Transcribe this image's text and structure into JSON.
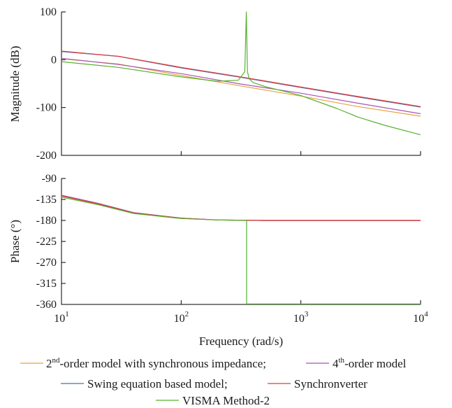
{
  "chart_data": [
    {
      "type": "line",
      "panel": "magnitude",
      "x_scale": "log",
      "xlim": [
        10,
        10000
      ],
      "ylim": [
        -200,
        100
      ],
      "yticks": [
        "100",
        "0",
        "-100",
        "-200"
      ],
      "ylabel": "Magnitude (dB)",
      "series": [
        {
          "name_key": "orange",
          "color": "#e8a33d",
          "x": [
            10,
            30,
            100,
            300,
            1000,
            3000,
            10000
          ],
          "y": [
            2,
            -9,
            -33,
            -54,
            -76,
            -98,
            -118
          ]
        },
        {
          "name_key": "purple",
          "color": "#a855b5",
          "x": [
            10,
            30,
            100,
            300,
            1000,
            3000,
            10000
          ],
          "y": [
            3,
            -10,
            -29,
            -50,
            -70,
            -91,
            -113
          ]
        },
        {
          "name_key": "blue",
          "color": "#4a6fb5",
          "x": [
            10,
            30,
            100,
            300,
            1000,
            3000,
            10000
          ],
          "y": [
            17,
            7,
            -17,
            -36,
            -58,
            -78,
            -99
          ]
        },
        {
          "name_key": "red",
          "color": "#e03c3c",
          "x": [
            10,
            30,
            100,
            300,
            1000,
            3000,
            10000
          ],
          "y": [
            18,
            7,
            -16,
            -35,
            -57,
            -77,
            -98
          ]
        },
        {
          "name_key": "green",
          "color": "#56b22f",
          "x": [
            10,
            30,
            100,
            200,
            300,
            340,
            350,
            358,
            370,
            400,
            500,
            700,
            1000,
            2000,
            3000,
            5000,
            10000
          ],
          "y": [
            -4,
            -16,
            -36,
            -45,
            -43,
            -25,
            100,
            -25,
            -40,
            -48,
            -56,
            -65,
            -75,
            -102,
            -120,
            -137,
            -157
          ]
        }
      ]
    },
    {
      "type": "line",
      "panel": "phase",
      "x_scale": "log",
      "xlim": [
        10,
        10000
      ],
      "ylim": [
        -360,
        -90
      ],
      "yticks": [
        "-90",
        "-135",
        "-180",
        "-225",
        "-270",
        "-315",
        "-360"
      ],
      "ylabel": "Phase (°)",
      "xlabel": "Frequency (rad/s)",
      "series": [
        {
          "name_key": "orange",
          "color": "#e8a33d",
          "x": [
            10,
            20,
            40,
            100,
            200,
            500,
            1000,
            10000
          ],
          "y": [
            -128,
            -145,
            -165,
            -175,
            -179,
            -180,
            -180,
            -180
          ]
        },
        {
          "name_key": "purple",
          "color": "#a855b5",
          "x": [
            10,
            20,
            40,
            100,
            200,
            500,
            1000,
            10000
          ],
          "y": [
            -126,
            -143,
            -163,
            -175,
            -179,
            -180,
            -180,
            -180
          ]
        },
        {
          "name_key": "blue",
          "color": "#4a6fb5",
          "x": [
            10,
            20,
            40,
            100,
            200,
            500,
            1000,
            10000
          ],
          "y": [
            -127,
            -144,
            -164,
            -175,
            -179,
            -180,
            -180,
            -180
          ]
        },
        {
          "name_key": "red",
          "color": "#e03c3c",
          "x": [
            10,
            20,
            40,
            100,
            200,
            500,
            1000,
            10000
          ],
          "y": [
            -127,
            -144,
            -164,
            -175,
            -179,
            -180,
            -180,
            -180
          ]
        },
        {
          "name_key": "green",
          "color": "#56b22f",
          "x": [
            10,
            20,
            40,
            100,
            200,
            340,
            352,
            352,
            1000,
            10000
          ],
          "y": [
            -130,
            -146,
            -165,
            -176,
            -179,
            -180,
            -180,
            -359,
            -359,
            -359
          ]
        }
      ]
    }
  ],
  "xticks": {
    "base": "10",
    "exponents": [
      "1",
      "2",
      "3",
      "4"
    ]
  },
  "legend": {
    "orange_pre": "2",
    "orange_sup": "nd",
    "orange_post": "-order model with synchronous impedance;",
    "purple_pre": "4",
    "purple_sup": "th",
    "purple_post": "-order model",
    "blue": "Swing equation based model;",
    "red": "Synchronverter",
    "green": "VISMA Method-2"
  }
}
